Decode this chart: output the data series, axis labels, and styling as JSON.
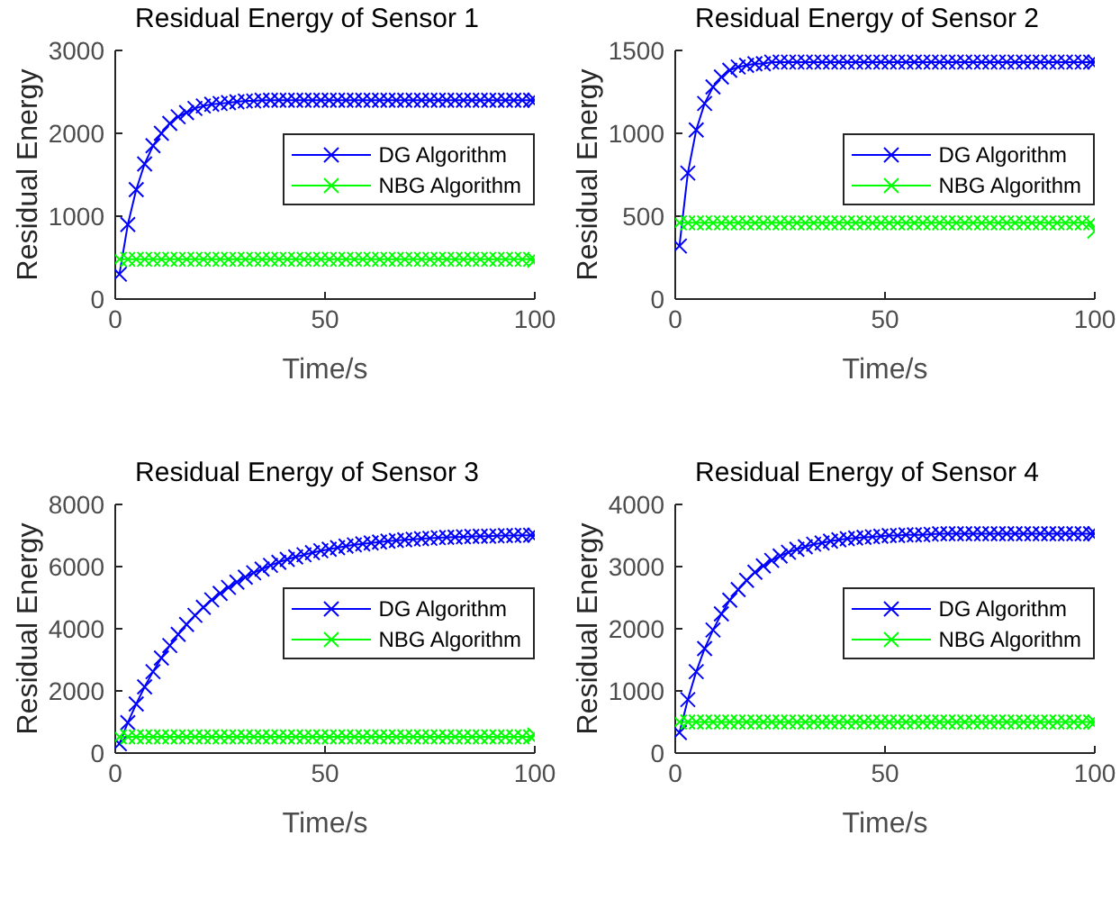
{
  "chart_data": [
    {
      "type": "line",
      "title": "Residual Energy of Sensor 1",
      "xlabel": "Time/s",
      "ylabel": "Residual Energy",
      "x": [
        1,
        3,
        5,
        7,
        9,
        11,
        13,
        15,
        17,
        19,
        21,
        23,
        25,
        27,
        29,
        31,
        33,
        35,
        37,
        39,
        41,
        43,
        45,
        47,
        49,
        51,
        53,
        55,
        57,
        59,
        61,
        63,
        65,
        67,
        69,
        71,
        73,
        75,
        77,
        79,
        81,
        83,
        85,
        87,
        89,
        91,
        93,
        95,
        97,
        99,
        100
      ],
      "xlim": [
        0,
        100
      ],
      "xticks": [
        0,
        50,
        100
      ],
      "ylim": [
        0,
        3000
      ],
      "yticks": [
        0,
        1000,
        2000,
        3000
      ],
      "legend": "right",
      "marker": "cross",
      "series": [
        {
          "name": "DG Algorithm",
          "color": "#0000ff",
          "values": [
            300,
            900,
            1320,
            1630,
            1850,
            2000,
            2120,
            2200,
            2250,
            2300,
            2330,
            2350,
            2360,
            2370,
            2380,
            2390,
            2390,
            2400,
            2400,
            2400,
            2400,
            2400,
            2400,
            2400,
            2400,
            2400,
            2400,
            2400,
            2400,
            2400,
            2400,
            2400,
            2400,
            2400,
            2400,
            2400,
            2400,
            2400,
            2400,
            2400,
            2400,
            2400,
            2400,
            2400,
            2400,
            2400,
            2400,
            2400,
            2400,
            2400,
            2400
          ]
        },
        {
          "name": "NBG Algorithm",
          "color": "#00ff00",
          "values": [
            480,
            480,
            480,
            480,
            480,
            480,
            480,
            480,
            480,
            480,
            480,
            480,
            480,
            480,
            480,
            480,
            480,
            480,
            480,
            480,
            480,
            480,
            480,
            480,
            480,
            480,
            480,
            480,
            480,
            480,
            480,
            480,
            480,
            480,
            480,
            480,
            480,
            480,
            480,
            480,
            480,
            480,
            480,
            480,
            480,
            480,
            480,
            480,
            480,
            480,
            470
          ]
        }
      ]
    },
    {
      "type": "line",
      "title": "Residual Energy of Sensor 2",
      "xlabel": "Time/s",
      "ylabel": "Residual Energy",
      "x": [
        1,
        3,
        5,
        7,
        9,
        11,
        13,
        15,
        17,
        19,
        21,
        23,
        25,
        27,
        29,
        31,
        33,
        35,
        37,
        39,
        41,
        43,
        45,
        47,
        49,
        51,
        53,
        55,
        57,
        59,
        61,
        63,
        65,
        67,
        69,
        71,
        73,
        75,
        77,
        79,
        81,
        83,
        85,
        87,
        89,
        91,
        93,
        95,
        97,
        99,
        100
      ],
      "xlim": [
        0,
        100
      ],
      "xticks": [
        0,
        50,
        100
      ],
      "ylim": [
        0,
        1500
      ],
      "yticks": [
        0,
        500,
        1000,
        1500
      ],
      "legend": "right",
      "marker": "cross",
      "series": [
        {
          "name": "DG Algorithm",
          "color": "#0000ff",
          "values": [
            320,
            760,
            1020,
            1180,
            1280,
            1340,
            1380,
            1400,
            1410,
            1420,
            1420,
            1430,
            1430,
            1430,
            1430,
            1430,
            1430,
            1430,
            1430,
            1430,
            1430,
            1430,
            1430,
            1430,
            1430,
            1430,
            1430,
            1430,
            1430,
            1430,
            1430,
            1430,
            1430,
            1430,
            1430,
            1430,
            1430,
            1430,
            1430,
            1430,
            1430,
            1430,
            1430,
            1430,
            1430,
            1430,
            1430,
            1430,
            1430,
            1430,
            1430
          ]
        },
        {
          "name": "NBG Algorithm",
          "color": "#00ff00",
          "values": [
            460,
            460,
            460,
            460,
            460,
            460,
            460,
            460,
            460,
            460,
            460,
            460,
            460,
            460,
            460,
            460,
            460,
            460,
            460,
            460,
            460,
            460,
            460,
            460,
            460,
            460,
            460,
            460,
            460,
            460,
            460,
            460,
            460,
            460,
            460,
            460,
            460,
            460,
            460,
            460,
            460,
            460,
            460,
            460,
            460,
            460,
            460,
            460,
            460,
            460,
            410
          ]
        }
      ]
    },
    {
      "type": "line",
      "title": "Residual Energy of Sensor 3",
      "xlabel": "Time/s",
      "ylabel": "Residual Energy",
      "x": [
        1,
        3,
        5,
        7,
        9,
        11,
        13,
        15,
        17,
        19,
        21,
        23,
        25,
        27,
        29,
        31,
        33,
        35,
        37,
        39,
        41,
        43,
        45,
        47,
        49,
        51,
        53,
        55,
        57,
        59,
        61,
        63,
        65,
        67,
        69,
        71,
        73,
        75,
        77,
        79,
        81,
        83,
        85,
        87,
        89,
        91,
        93,
        95,
        97,
        99,
        100
      ],
      "xlim": [
        0,
        100
      ],
      "xticks": [
        0,
        50,
        100
      ],
      "ylim": [
        0,
        8000
      ],
      "yticks": [
        0,
        2000,
        4000,
        6000,
        8000
      ],
      "legend": "right",
      "marker": "cross",
      "series": [
        {
          "name": "DG Algorithm",
          "color": "#0000ff",
          "values": [
            300,
            980,
            1580,
            2130,
            2620,
            3060,
            3460,
            3820,
            4140,
            4430,
            4690,
            4930,
            5140,
            5330,
            5500,
            5660,
            5800,
            5920,
            6040,
            6140,
            6230,
            6310,
            6380,
            6450,
            6510,
            6560,
            6610,
            6660,
            6700,
            6730,
            6760,
            6790,
            6820,
            6840,
            6860,
            6880,
            6900,
            6910,
            6930,
            6940,
            6950,
            6960,
            6970,
            6980,
            6980,
            6990,
            7000,
            7000,
            7010,
            7010,
            7010
          ]
        },
        {
          "name": "NBG Algorithm",
          "color": "#00ff00",
          "values": [
            520,
            520,
            520,
            520,
            520,
            520,
            520,
            520,
            520,
            520,
            520,
            520,
            520,
            520,
            520,
            520,
            520,
            520,
            520,
            520,
            520,
            520,
            520,
            520,
            520,
            520,
            520,
            520,
            520,
            520,
            520,
            520,
            520,
            520,
            520,
            520,
            520,
            520,
            520,
            520,
            520,
            520,
            520,
            520,
            520,
            520,
            520,
            520,
            520,
            520,
            580
          ]
        }
      ]
    },
    {
      "type": "line",
      "title": "Residual Energy of Sensor 4",
      "xlabel": "Time/s",
      "ylabel": "Residual Energy",
      "x": [
        1,
        3,
        5,
        7,
        9,
        11,
        13,
        15,
        17,
        19,
        21,
        23,
        25,
        27,
        29,
        31,
        33,
        35,
        37,
        39,
        41,
        43,
        45,
        47,
        49,
        51,
        53,
        55,
        57,
        59,
        61,
        63,
        65,
        67,
        69,
        71,
        73,
        75,
        77,
        79,
        81,
        83,
        85,
        87,
        89,
        91,
        93,
        95,
        97,
        99,
        100
      ],
      "xlim": [
        0,
        100
      ],
      "xticks": [
        0,
        50,
        100
      ],
      "ylim": [
        0,
        4000
      ],
      "yticks": [
        0,
        1000,
        2000,
        3000,
        4000
      ],
      "legend": "right",
      "marker": "cross",
      "series": [
        {
          "name": "DG Algorithm",
          "color": "#0000ff",
          "values": [
            330,
            860,
            1310,
            1680,
            1980,
            2240,
            2460,
            2630,
            2780,
            2910,
            3010,
            3100,
            3170,
            3230,
            3280,
            3320,
            3360,
            3380,
            3410,
            3430,
            3450,
            3460,
            3470,
            3480,
            3490,
            3500,
            3500,
            3510,
            3510,
            3510,
            3520,
            3530,
            3530,
            3530,
            3530,
            3530,
            3530,
            3530,
            3530,
            3530,
            3530,
            3530,
            3530,
            3530,
            3530,
            3530,
            3530,
            3530,
            3530,
            3530,
            3530
          ]
        },
        {
          "name": "NBG Algorithm",
          "color": "#00ff00",
          "values": [
            500,
            500,
            500,
            500,
            500,
            500,
            500,
            500,
            500,
            500,
            500,
            500,
            500,
            500,
            500,
            500,
            500,
            500,
            500,
            500,
            500,
            500,
            500,
            500,
            500,
            500,
            500,
            500,
            500,
            500,
            500,
            500,
            500,
            500,
            500,
            500,
            500,
            500,
            500,
            500,
            500,
            500,
            500,
            500,
            500,
            500,
            500,
            500,
            500,
            500,
            500
          ]
        }
      ]
    }
  ]
}
